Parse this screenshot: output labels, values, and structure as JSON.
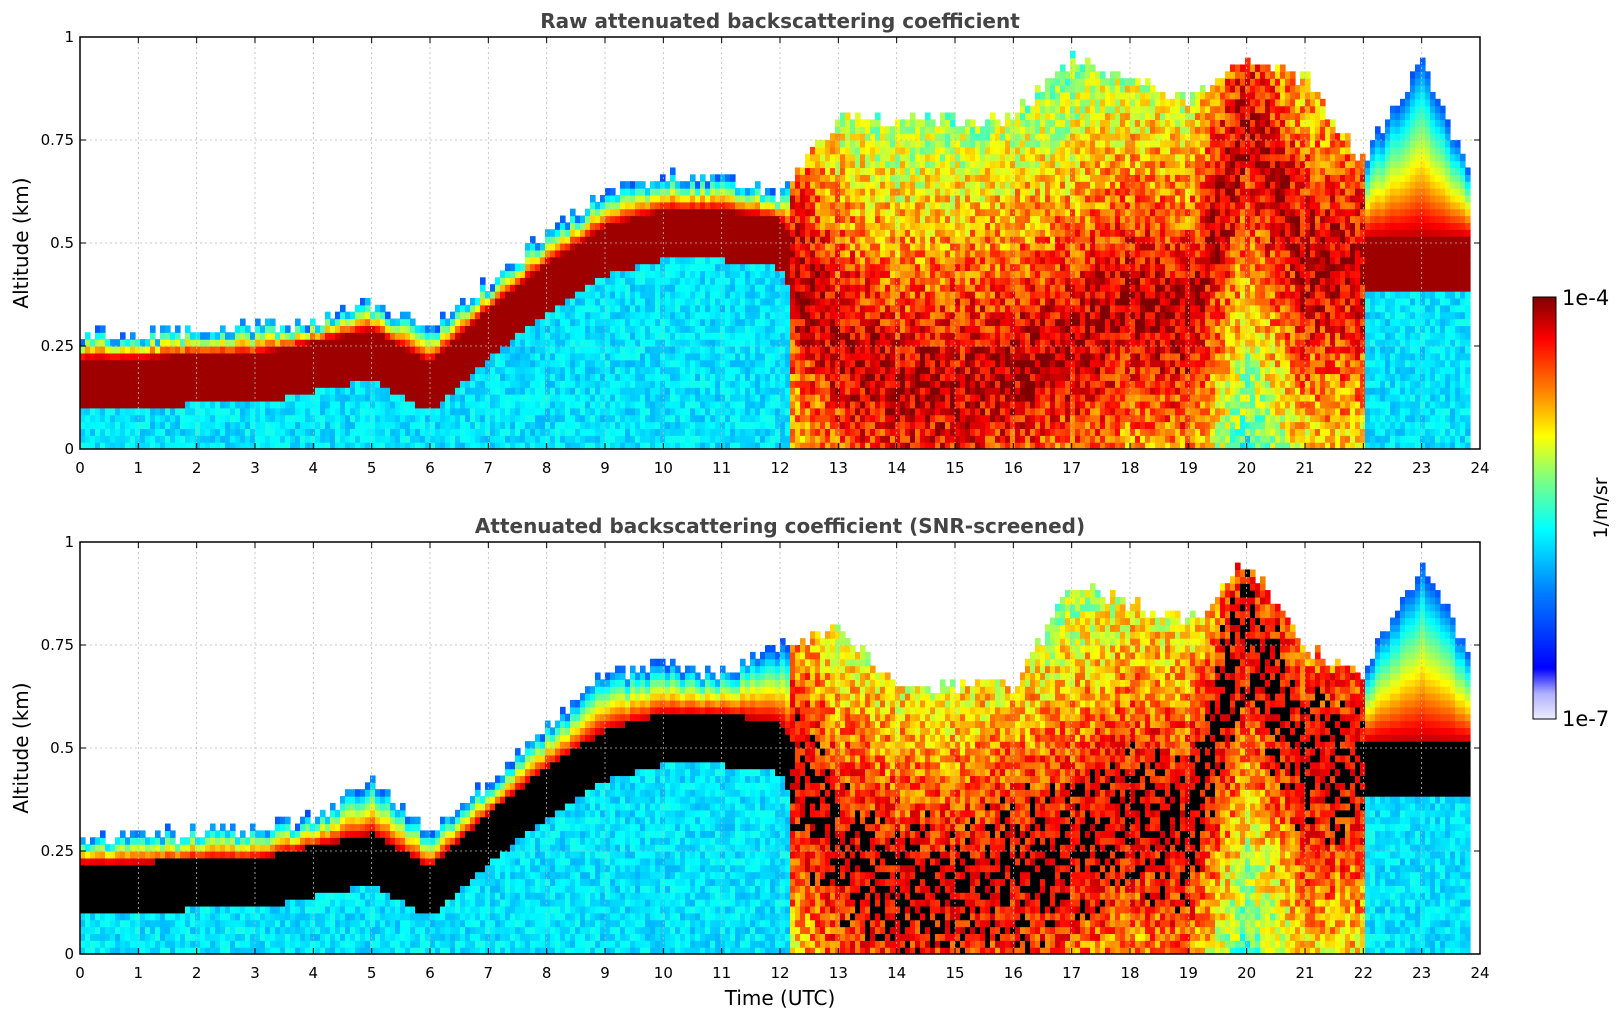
{
  "chart_data": [
    {
      "type": "heatmap",
      "title": "Raw attenuated backscattering coefficient",
      "ylabel": "Altitude (km)",
      "xlabel": "",
      "xlim": [
        0,
        24
      ],
      "ylim": [
        0,
        1
      ],
      "x_ticks": [
        "0",
        "1",
        "2",
        "3",
        "4",
        "5",
        "6",
        "7",
        "8",
        "9",
        "10",
        "11",
        "12",
        "13",
        "14",
        "15",
        "16",
        "17",
        "18",
        "19",
        "20",
        "21",
        "22",
        "23",
        "24"
      ],
      "y_ticks": [
        "0",
        "0.25",
        "0.5",
        "0.75",
        "1"
      ],
      "grid": true,
      "colormap": "jet",
      "screened": false,
      "layer_top_km": [
        0.28,
        0.28,
        0.29,
        0.3,
        0.31,
        0.36,
        0.29,
        0.4,
        0.53,
        0.62,
        0.66,
        0.66,
        0.62,
        0.8,
        0.8,
        0.8,
        0.8,
        0.95,
        0.9,
        0.85,
        0.95,
        0.9,
        0.7,
        0.95,
        0.6
      ],
      "layer_center_km": [
        0.16,
        0.16,
        0.17,
        0.17,
        0.2,
        0.23,
        0.15,
        0.28,
        0.39,
        0.48,
        0.52,
        0.52,
        0.5,
        0.25,
        0.15,
        0.15,
        0.2,
        0.25,
        0.35,
        0.3,
        0.8,
        0.45,
        0.45,
        0.45,
        0.45
      ]
    },
    {
      "type": "heatmap",
      "title": "Attenuated backscattering coefficient (SNR-screened)",
      "ylabel": "Altitude (km)",
      "xlabel": "Time (UTC)",
      "xlim": [
        0,
        24
      ],
      "ylim": [
        0,
        1
      ],
      "x_ticks": [
        "0",
        "1",
        "2",
        "3",
        "4",
        "5",
        "6",
        "7",
        "8",
        "9",
        "10",
        "11",
        "12",
        "13",
        "14",
        "15",
        "16",
        "17",
        "18",
        "19",
        "20",
        "21",
        "22",
        "23",
        "24"
      ],
      "y_ticks": [
        "0",
        "0.25",
        "0.5",
        "0.75",
        "1"
      ],
      "grid": true,
      "colormap": "jet",
      "screened": true,
      "layer_top_km": [
        0.29,
        0.28,
        0.3,
        0.3,
        0.33,
        0.43,
        0.29,
        0.42,
        0.55,
        0.68,
        0.7,
        0.68,
        0.75,
        0.8,
        0.65,
        0.65,
        0.65,
        0.9,
        0.85,
        0.8,
        0.95,
        0.75,
        0.68,
        0.95,
        0.68
      ],
      "layer_center_km": [
        0.16,
        0.16,
        0.17,
        0.17,
        0.2,
        0.23,
        0.15,
        0.28,
        0.39,
        0.48,
        0.52,
        0.52,
        0.5,
        0.25,
        0.15,
        0.15,
        0.2,
        0.25,
        0.35,
        0.3,
        0.8,
        0.45,
        0.45,
        0.45,
        0.45
      ]
    }
  ],
  "colorbar": {
    "max_label": "1e-4",
    "min_label": "1e-7",
    "unit": "1/m/sr",
    "colors": [
      "#00007f",
      "#0000ff",
      "#007fff",
      "#00ffff",
      "#7fff7f",
      "#ffff00",
      "#ff7f00",
      "#ff0000",
      "#7f0000"
    ]
  }
}
